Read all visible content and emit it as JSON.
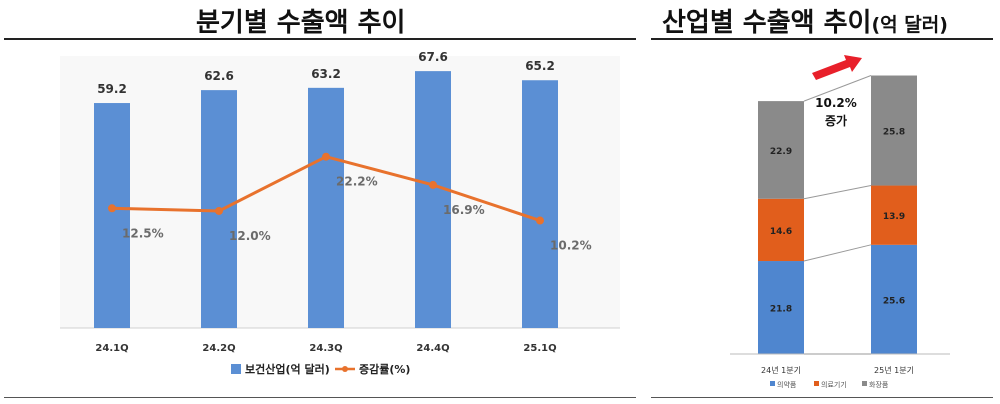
{
  "titles": {
    "left": "분기별 수출액 추이",
    "right": "산업별 수출액 추이",
    "right_suffix": "(억 달러)"
  },
  "colors": {
    "bar": "#5b8fd4",
    "line": "#e8722d",
    "pharma": "#4f86cf",
    "device": "#e15e1c",
    "cosmetics": "#8a8a8a"
  },
  "chart_data": [
    {
      "type": "bar",
      "categories": [
        "24.1Q",
        "24.2Q",
        "24.3Q",
        "24.4Q",
        "25.1Q"
      ],
      "series": [
        {
          "name": "보건산업(억 달러)",
          "type": "bar",
          "values": [
            59.2,
            62.6,
            63.2,
            67.6,
            65.2
          ]
        },
        {
          "name": "증감률(%)",
          "type": "line",
          "values": [
            12.5,
            12.0,
            22.2,
            16.9,
            10.2
          ],
          "value_labels": [
            "12.5%",
            "12.0%",
            "22.2%",
            "16.9%",
            "10.2%"
          ]
        }
      ],
      "ylim": [
        0,
        70
      ],
      "line_ylim": [
        -10,
        40
      ],
      "grid": false,
      "legend": "bottom"
    },
    {
      "type": "bar",
      "stacked": true,
      "categories": [
        "24년 1분기",
        "25년 1분기"
      ],
      "series": [
        {
          "name": "의약품",
          "values": [
            21.8,
            25.6
          ]
        },
        {
          "name": "의료기기",
          "values": [
            14.6,
            13.9
          ]
        },
        {
          "name": "화장품",
          "values": [
            22.9,
            25.8
          ]
        }
      ],
      "annotation": "10.2% 증가",
      "ylim": [
        0,
        68
      ],
      "legend": "bottom"
    }
  ]
}
